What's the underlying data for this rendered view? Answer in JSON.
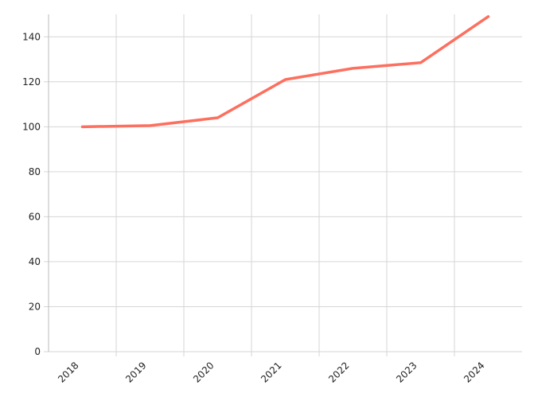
{
  "chart_data": {
    "type": "line",
    "categories": [
      "2018",
      "2019",
      "2020",
      "2021",
      "2022",
      "2023",
      "2024"
    ],
    "values": [
      100,
      100.5,
      104,
      121,
      126,
      128.5,
      149
    ],
    "color": "#fd6f5f",
    "ylim": [
      0,
      150
    ],
    "yticks": [
      0,
      20,
      40,
      60,
      80,
      100,
      120,
      140
    ],
    "grid": true
  }
}
